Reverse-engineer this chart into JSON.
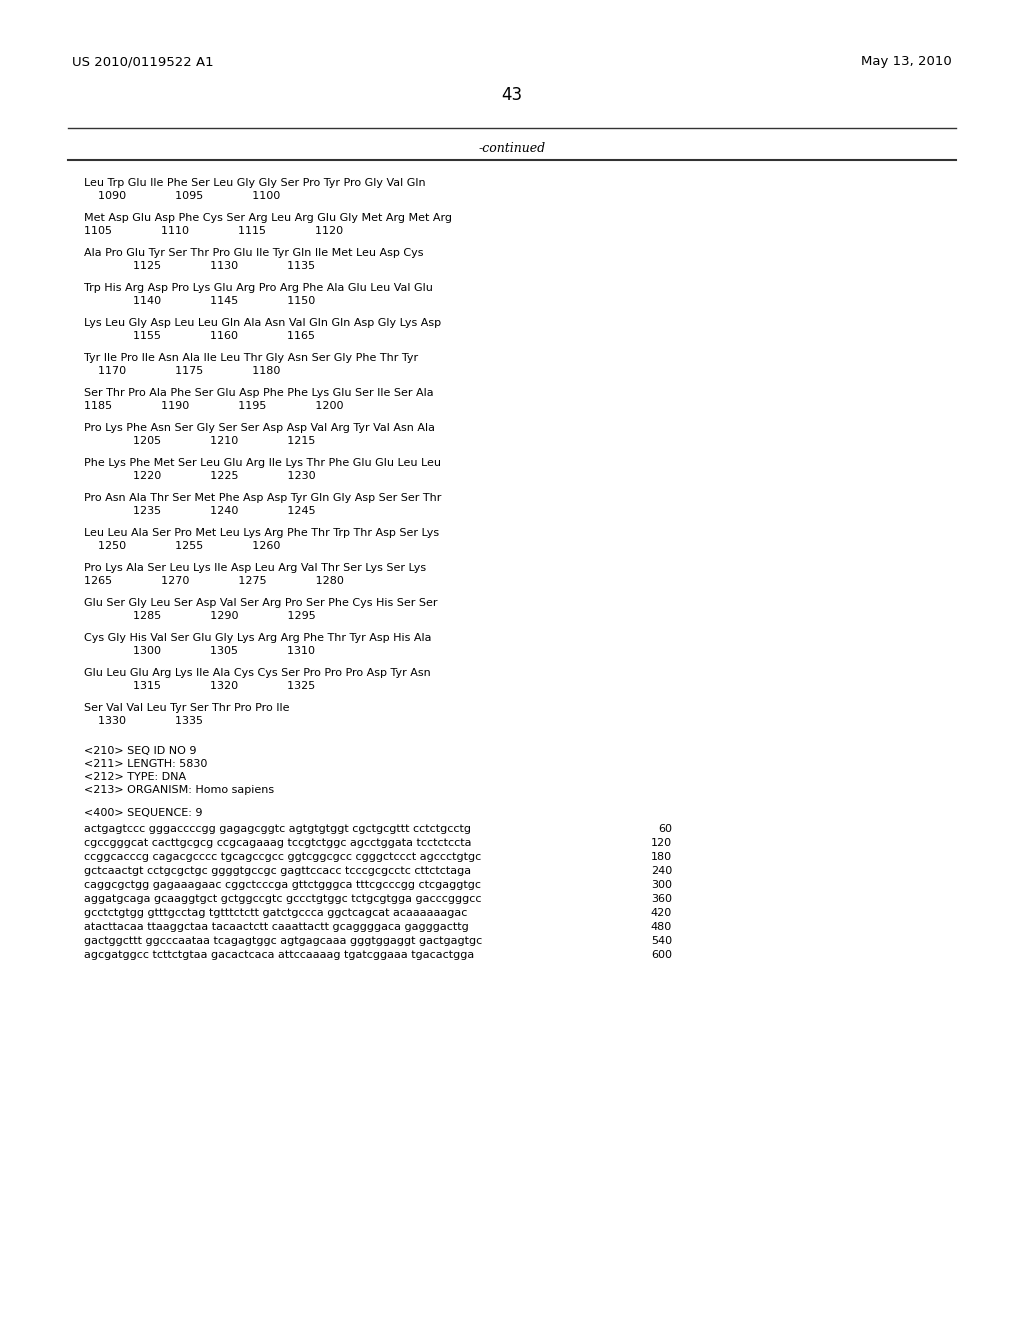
{
  "header_left": "US 2010/0119522 A1",
  "header_right": "May 13, 2010",
  "page_number": "43",
  "continued_label": "-continued",
  "background_color": "#ffffff",
  "text_color": "#000000",
  "sequence_lines_aa": [
    "Leu Trp Glu Ile Phe Ser Leu Gly Gly Ser Pro Tyr Pro Gly Val Gln",
    "Met Asp Glu Asp Phe Cys Ser Arg Leu Arg Glu Gly Met Arg Met Arg",
    "Ala Pro Glu Tyr Ser Thr Pro Glu Ile Tyr Gln Ile Met Leu Asp Cys",
    "Trp His Arg Asp Pro Lys Glu Arg Pro Arg Phe Ala Glu Leu Val Glu",
    "Lys Leu Gly Asp Leu Leu Gln Ala Asn Val Gln Gln Asp Gly Lys Asp",
    "Tyr Ile Pro Ile Asn Ala Ile Leu Thr Gly Asn Ser Gly Phe Thr Tyr",
    "Ser Thr Pro Ala Phe Ser Glu Asp Phe Phe Lys Glu Ser Ile Ser Ala",
    "Pro Lys Phe Asn Ser Gly Ser Ser Asp Asp Val Arg Tyr Val Asn Ala",
    "Phe Lys Phe Met Ser Leu Glu Arg Ile Lys Thr Phe Glu Glu Leu Leu",
    "Pro Asn Ala Thr Ser Met Phe Asp Asp Tyr Gln Gly Asp Ser Ser Thr",
    "Leu Leu Ala Ser Pro Met Leu Lys Arg Phe Thr Trp Thr Asp Ser Lys",
    "Pro Lys Ala Ser Leu Lys Ile Asp Leu Arg Val Thr Ser Lys Ser Lys",
    "Glu Ser Gly Leu Ser Asp Val Ser Arg Pro Ser Phe Cys His Ser Ser",
    "Cys Gly His Val Ser Glu Gly Lys Arg Arg Phe Thr Tyr Asp His Ala",
    "Glu Leu Glu Arg Lys Ile Ala Cys Cys Ser Pro Pro Pro Asp Tyr Asn",
    "Ser Val Val Leu Tyr Ser Thr Pro Pro Ile"
  ],
  "sequence_lines_num": [
    "    1090              1095              1100",
    "1105              1110              1115              1120",
    "              1125              1130              1135",
    "              1140              1145              1150",
    "              1155              1160              1165",
    "    1170              1175              1180",
    "1185              1190              1195              1200",
    "              1205              1210              1215",
    "              1220              1225              1230",
    "              1235              1240              1245",
    "    1250              1255              1260",
    "1265              1270              1275              1280",
    "              1285              1290              1295",
    "              1300              1305              1310",
    "              1315              1320              1325",
    "    1330              1335"
  ],
  "seq_info_lines": [
    "<210> SEQ ID NO 9",
    "<211> LENGTH: 5830",
    "<212> TYPE: DNA",
    "<213> ORGANISM: Homo sapiens"
  ],
  "seq_label": "<400> SEQUENCE: 9",
  "dna_lines": [
    [
      "actgagtccc gggaccccgg gagagcggtc agtgtgtggt cgctgcgttt cctctgcctg",
      "60"
    ],
    [
      "cgccgggcat cacttgcgcg ccgcagaaag tccgtctggc agcctggata tcctctccta",
      "120"
    ],
    [
      "ccggcacccg cagacgcccc tgcagccgcc ggtcggcgcc cgggctccct agccctgtgc",
      "180"
    ],
    [
      "gctcaactgt cctgcgctgc ggggtgccgc gagttccacc tcccgcgcctc cttctctaga",
      "240"
    ],
    [
      "caggcgctgg gagaaagaac cggctcccga gttctgggca tttcgcccgg ctcgaggtgc",
      "300"
    ],
    [
      "aggatgcaga gcaaggtgct gctggccgtc gccctgtggc tctgcgtgga gacccgggcc",
      "360"
    ],
    [
      "gcctctgtgg gtttgcctag tgtttctctt gatctgccca ggctcagcat acaaaaaagac",
      "420"
    ],
    [
      "atacttacaa ttaaggctaa tacaactctt caaattactt gcaggggaca gagggacttg",
      "480"
    ],
    [
      "gactggcttt ggcccaataa tcagagtggc agtgagcaaa gggtggaggt gactgagtgc",
      "540"
    ],
    [
      "agcgatggcc tcttctgtaa gacactcaca attccaaaag tgatcggaaa tgacactgga",
      "600"
    ]
  ]
}
